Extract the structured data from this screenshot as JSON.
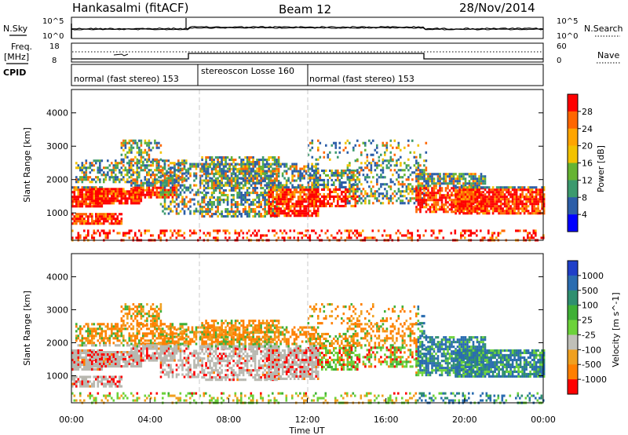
{
  "header": {
    "station": "Hankasalmi (fitACF)",
    "beam": "Beam 12",
    "date": "28/Nov/2014"
  },
  "side_labels": {
    "nsky": "N.Sky",
    "nsearch": "N.Search",
    "freq": "Freq.",
    "freq_unit": "[MHz]",
    "nave": "Nave",
    "cpid": "CPID"
  },
  "noise_panel": {
    "left_ticks": [
      "10^5",
      "10^0"
    ],
    "right_ticks": [
      "10^5",
      "10^0"
    ]
  },
  "freq_panel": {
    "left_ticks": [
      "18",
      "8"
    ],
    "right_ticks": [
      "60",
      "0"
    ]
  },
  "cpid_segments": [
    {
      "label": "normal (fast stereo) 153",
      "start_h": 0,
      "end_h": 6.4
    },
    {
      "label": "stereoscon Losse 160",
      "start_h": 6.4,
      "end_h": 12.0
    },
    {
      "label": "normal (fast stereo) 153",
      "start_h": 12.0,
      "end_h": 24
    }
  ],
  "chart_data": [
    {
      "type": "heatmap",
      "name": "power",
      "ylabel": "Slant Range [km]",
      "yticks": [
        1000,
        2000,
        3000,
        4000
      ],
      "ylim": [
        180,
        4700
      ],
      "colorbar": {
        "label": "Power [dB]",
        "ticks": [
          "28",
          "24",
          "20",
          "16",
          "12",
          "8",
          "4"
        ],
        "colors": [
          "#ff0000",
          "#ff6600",
          "#ffa500",
          "#f2c200",
          "#66b432",
          "#3c9a6e",
          "#2c5ea8",
          "#0000ff"
        ]
      }
    },
    {
      "type": "heatmap",
      "name": "velocity",
      "ylabel": "Slant Range [km]",
      "yticks": [
        1000,
        2000,
        3000,
        4000
      ],
      "ylim": [
        180,
        4700
      ],
      "xlabel": "Time UT",
      "xticks": [
        "00:00",
        "04:00",
        "08:00",
        "12:00",
        "16:00",
        "20:00",
        "00:00"
      ],
      "xlim_hours": [
        0,
        24
      ],
      "colorbar": {
        "label": "Velocity [m s^-1]",
        "ticks": [
          "1000",
          "500",
          "100",
          "25",
          "-25",
          "-100",
          "-500",
          "-1000"
        ],
        "colors": [
          "#1f3fc8",
          "#2a6cb0",
          "#2f8f70",
          "#3fb036",
          "#6cd23a",
          "#c0c0b8",
          "#f0a020",
          "#ff7f00",
          "#ff0000"
        ]
      }
    }
  ],
  "colors": {
    "ground_scatter": "#b8b8b0",
    "dashed_markers": "#c8c8c8"
  }
}
